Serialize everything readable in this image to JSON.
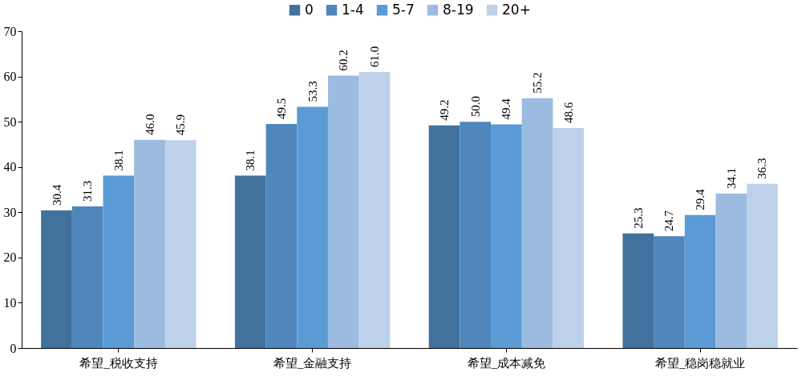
{
  "chart_data": {
    "type": "bar",
    "categories": [
      "希望_税收支持",
      "希望_金融支持",
      "希望_成本减免",
      "希望_稳岗稳就业"
    ],
    "series": [
      {
        "name": "0",
        "color": "#41719c",
        "values": [
          30.4,
          38.1,
          49.2,
          25.3
        ],
        "value_labels": [
          "30.4",
          "38.1",
          "49.2",
          "25.3"
        ]
      },
      {
        "name": "1-4",
        "color": "#4f87bd",
        "values": [
          31.3,
          49.5,
          50.0,
          24.7
        ],
        "value_labels": [
          "31.3",
          "49.5",
          "50.0",
          "24.7"
        ]
      },
      {
        "name": "5-7",
        "color": "#5b9bd5",
        "values": [
          38.1,
          53.3,
          49.4,
          29.4
        ],
        "value_labels": [
          "38.1",
          "53.3",
          "49.4",
          "29.4"
        ]
      },
      {
        "name": "8-19",
        "color": "#9bbbe0",
        "values": [
          46.0,
          60.2,
          55.2,
          34.1
        ],
        "value_labels": [
          "46.0",
          "60.2",
          "55.2",
          "34.1"
        ]
      },
      {
        "name": "20+",
        "color": "#bdd1ea",
        "values": [
          45.9,
          61.0,
          48.6,
          36.3
        ],
        "value_labels": [
          "45.9",
          "61.0",
          "48.6",
          "36.3"
        ]
      }
    ],
    "ylim": [
      0,
      70
    ],
    "yticks": [
      0,
      10,
      20,
      30,
      40,
      50,
      60,
      70
    ],
    "legend": "top"
  }
}
